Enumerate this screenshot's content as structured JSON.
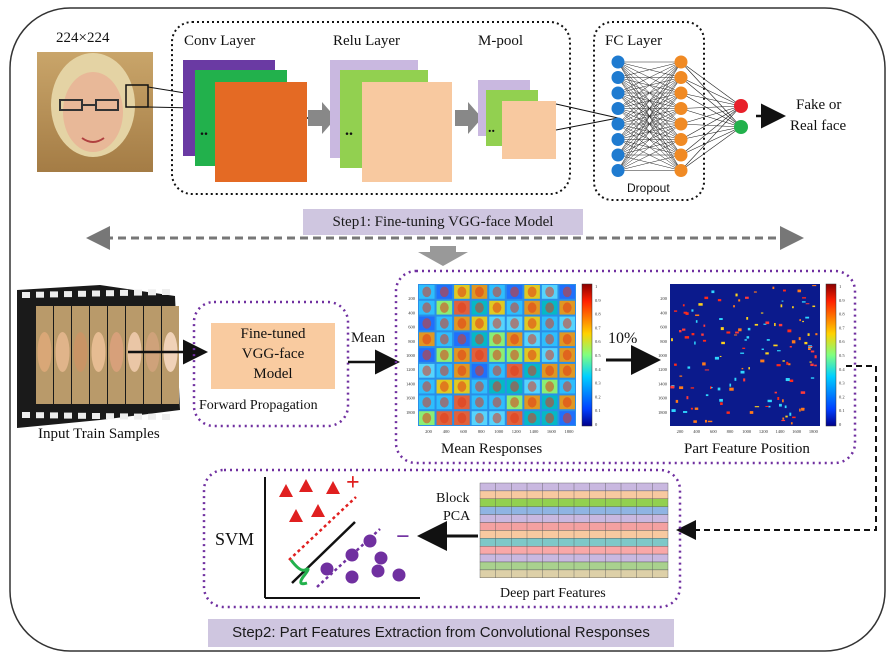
{
  "input_size_label": "224×224",
  "layers": {
    "conv": "Conv Layer",
    "relu": "Relu Layer",
    "mpool": "M-pool",
    "fc": "FC Layer",
    "dropout": "Dropout"
  },
  "output_label_line1": "Fake or",
  "output_label_line2": "Real face",
  "step1_label": "Step1: Fine-tuning VGG-face Model",
  "model_box": {
    "line1": "Fine-tuned",
    "line2": "VGG-face",
    "line3": "Model",
    "caption": "Forward Propagation"
  },
  "input_samples_label": "Input Train Samples",
  "mean_arrow_label": "Mean",
  "mean_responses_label": "Mean Responses",
  "threshold_label": "10%",
  "part_feature_label": "Part Feature Position",
  "block_pca_line1": "Block",
  "block_pca_line2": "PCA",
  "deep_part_label": "Deep part Features",
  "svm_label": "SVM",
  "plus_sign": "+",
  "minus_sign": "−",
  "step2_label": "Step2: Part Features Extraction from Convolutional Responses",
  "heatmap_colorbar_ticks": [
    "1",
    "0.9",
    "0.8",
    "0.7",
    "0.6",
    "0.5",
    "0.4",
    "0.3",
    "0.2",
    "0.1",
    "0"
  ],
  "heatmap_y_ticks": [
    "200",
    "400",
    "600",
    "800",
    "1000",
    "1200",
    "1400",
    "1600",
    "1800"
  ],
  "heatmap_x_ticks": [
    "200",
    "400",
    "600",
    "800",
    "1000",
    "1200",
    "1400",
    "1600",
    "1800"
  ],
  "colors": {
    "conv_purple": "#6a3aa3",
    "conv_green": "#22b14c",
    "conv_orange": "#e46a24",
    "relu_lavender": "#c9b8e0",
    "relu_green": "#92d050",
    "relu_peach": "#f8c9a0",
    "fc_blue": "#1f7bd0",
    "fc_orange": "#f08a24",
    "out_red": "#e8202a",
    "out_green": "#22b14c",
    "frame_purple": "#7030a0",
    "step_bg": "#cfc6e0",
    "model_box_bg": "#f9cba0",
    "svm_red": "#e02020",
    "svm_purple": "#7030a0"
  }
}
